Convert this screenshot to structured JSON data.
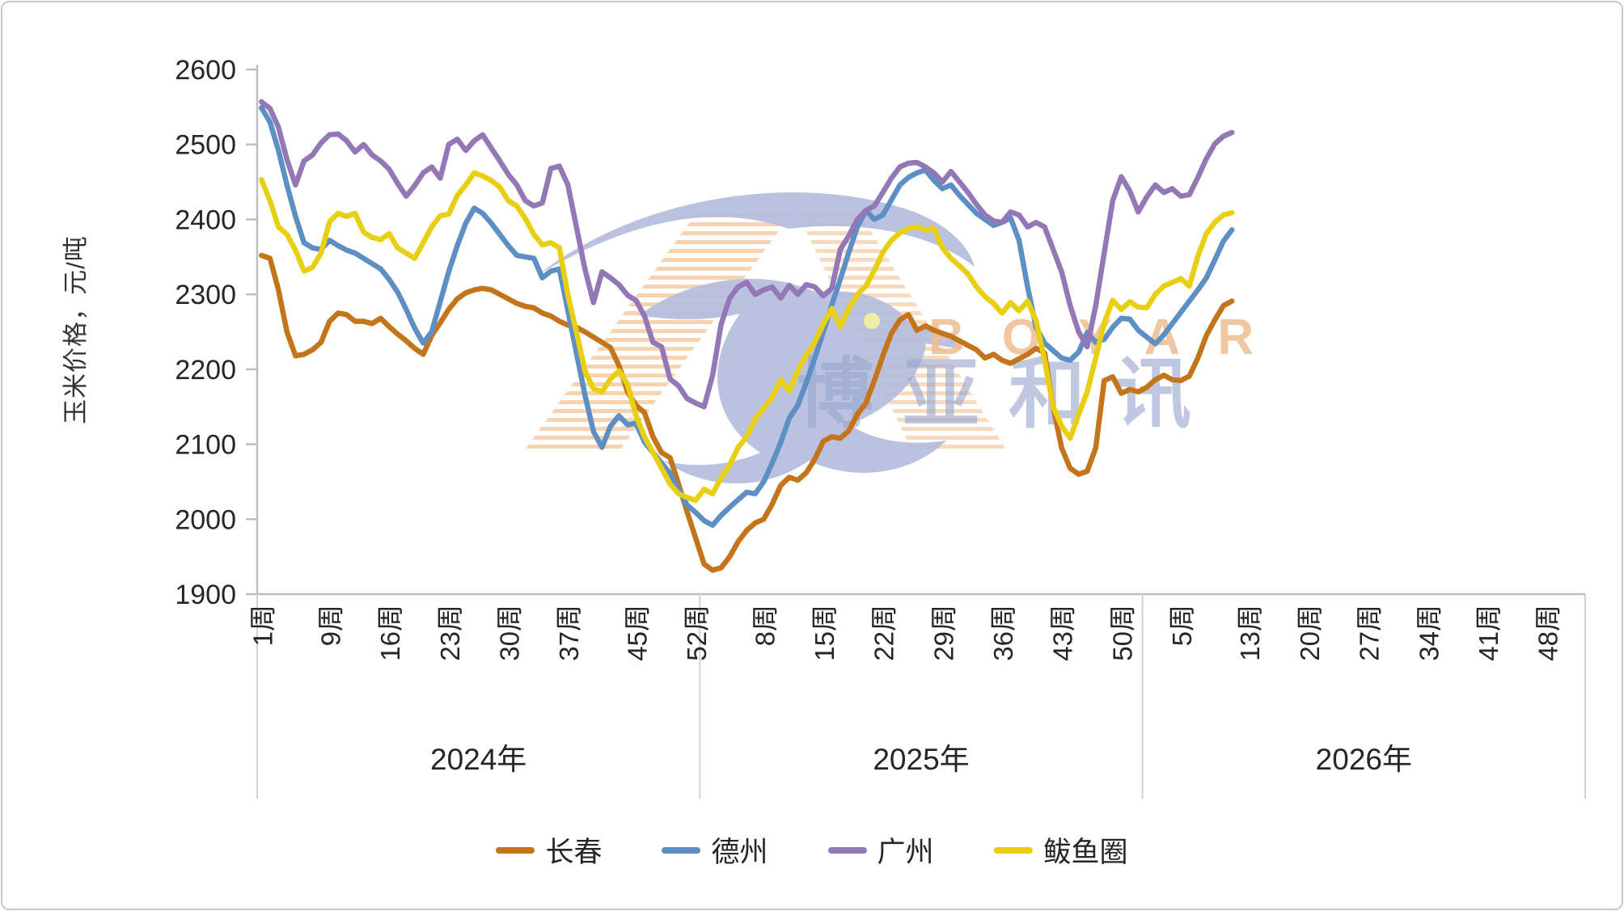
{
  "watermark": {
    "cn_text": "博亚和讯",
    "en_text": "BOYAR"
  },
  "chart_data": {
    "type": "line",
    "title": "",
    "xlabel": "",
    "ylabel": "玉米价格，元/吨",
    "ylim": [
      1900,
      2600
    ],
    "y_ticks": [
      2600,
      2500,
      2400,
      2300,
      2200,
      2100,
      2000,
      1900
    ],
    "grid": false,
    "legend_position": "bottom",
    "x_axis": {
      "unit_suffix": "周",
      "total_slots": 156,
      "years": [
        {
          "label": "2024年",
          "num_weeks": 52,
          "tick_weeks": [
            1,
            9,
            16,
            23,
            30,
            37,
            45,
            52
          ]
        },
        {
          "label": "2025年",
          "num_weeks": 52,
          "tick_weeks": [
            8,
            15,
            22,
            29,
            36,
            43,
            50
          ]
        },
        {
          "label": "2026年",
          "num_weeks": 52,
          "tick_weeks": [
            5,
            13,
            20,
            27,
            34,
            41,
            48
          ]
        }
      ]
    },
    "series": [
      {
        "name": "长春",
        "color": "#C4741A",
        "values_by_year": [
          [
            2352,
            2348,
            2306,
            2250,
            2218,
            2220,
            2226,
            2236,
            2264,
            2275,
            2273,
            2264,
            2264,
            2261,
            2268,
            2257,
            2247,
            2238,
            2228,
            2220,
            2245,
            2262,
            2280,
            2294,
            2302,
            2306,
            2308,
            2306,
            2300,
            2294,
            2288,
            2284,
            2282,
            2275,
            2271,
            2264,
            2259,
            2256,
            2250,
            2243,
            2236,
            2229,
            2205,
            2170,
            2152,
            2142,
            2110,
            2089,
            2082,
            2047,
            2010,
            1975
          ],
          [
            1940,
            1932,
            1935,
            1950,
            1970,
            1985,
            1995,
            2000,
            2020,
            2045,
            2056,
            2052,
            2062,
            2080,
            2104,
            2110,
            2108,
            2118,
            2140,
            2155,
            2185,
            2218,
            2248,
            2266,
            2273,
            2252,
            2258,
            2252,
            2248,
            2244,
            2238,
            2232,
            2226,
            2215,
            2220,
            2212,
            2208,
            2214,
            2220,
            2228,
            2222,
            2150,
            2095,
            2068,
            2060,
            2064,
            2095,
            2185,
            2190,
            2168,
            2173,
            2170
          ],
          [
            2176,
            2186,
            2192,
            2186,
            2185,
            2191,
            2215,
            2245,
            2266,
            2285,
            2291
          ]
        ]
      },
      {
        "name": "德州",
        "color": "#5E8FC4",
        "values_by_year": [
          [
            2549,
            2530,
            2492,
            2446,
            2404,
            2369,
            2362,
            2360,
            2372,
            2365,
            2359,
            2355,
            2348,
            2341,
            2334,
            2320,
            2303,
            2280,
            2255,
            2235,
            2250,
            2290,
            2330,
            2365,
            2395,
            2415,
            2408,
            2395,
            2380,
            2365,
            2352,
            2350,
            2348,
            2322,
            2331,
            2334,
            2278,
            2222,
            2166,
            2117,
            2096,
            2124,
            2138,
            2126,
            2128,
            2103,
            2089,
            2075,
            2061,
            2040,
            2019,
            2009
          ],
          [
            1998,
            1992,
            2005,
            2016,
            2026,
            2036,
            2034,
            2050,
            2075,
            2102,
            2135,
            2152,
            2182,
            2215,
            2250,
            2286,
            2320,
            2356,
            2390,
            2412,
            2400,
            2406,
            2426,
            2446,
            2456,
            2462,
            2466,
            2452,
            2441,
            2446,
            2432,
            2420,
            2408,
            2400,
            2392,
            2396,
            2402,
            2372,
            2310,
            2256,
            2235,
            2225,
            2215,
            2212,
            2223,
            2249,
            2236,
            2240,
            2256,
            2268,
            2267,
            2252
          ],
          [
            2243,
            2234,
            2246,
            2261,
            2276,
            2291,
            2306,
            2322,
            2346,
            2371,
            2386
          ]
        ]
      },
      {
        "name": "广州",
        "color": "#9377B6",
        "values_by_year": [
          [
            2557,
            2548,
            2523,
            2480,
            2446,
            2478,
            2486,
            2502,
            2513,
            2514,
            2505,
            2490,
            2500,
            2486,
            2478,
            2467,
            2448,
            2431,
            2445,
            2462,
            2470,
            2455,
            2500,
            2507,
            2492,
            2505,
            2513,
            2495,
            2478,
            2460,
            2446,
            2425,
            2418,
            2422,
            2468,
            2471,
            2446,
            2390,
            2334,
            2289,
            2330,
            2322,
            2313,
            2299,
            2292,
            2271,
            2236,
            2230,
            2187,
            2178,
            2161,
            2155
          ],
          [
            2150,
            2192,
            2260,
            2295,
            2310,
            2316,
            2300,
            2306,
            2310,
            2295,
            2312,
            2300,
            2313,
            2310,
            2298,
            2308,
            2360,
            2378,
            2400,
            2412,
            2418,
            2436,
            2455,
            2470,
            2475,
            2476,
            2470,
            2462,
            2450,
            2464,
            2450,
            2436,
            2420,
            2406,
            2398,
            2396,
            2410,
            2406,
            2390,
            2396,
            2390,
            2360,
            2330,
            2285,
            2250,
            2230,
            2285,
            2355,
            2425,
            2457,
            2438,
            2410
          ],
          [
            2430,
            2446,
            2436,
            2441,
            2431,
            2433,
            2456,
            2481,
            2501,
            2511,
            2516
          ]
        ]
      },
      {
        "name": "鲅鱼圈",
        "color": "#E8CF12",
        "values_by_year": [
          [
            2453,
            2425,
            2390,
            2380,
            2359,
            2331,
            2336,
            2355,
            2397,
            2408,
            2404,
            2408,
            2383,
            2376,
            2373,
            2381,
            2362,
            2355,
            2348,
            2369,
            2390,
            2405,
            2407,
            2432,
            2446,
            2462,
            2458,
            2452,
            2443,
            2425,
            2418,
            2401,
            2380,
            2366,
            2369,
            2362,
            2299,
            2250,
            2198,
            2174,
            2170,
            2187,
            2198,
            2180,
            2138,
            2110,
            2089,
            2068,
            2047,
            2034,
            2029,
            2025
          ],
          [
            2040,
            2034,
            2055,
            2072,
            2096,
            2110,
            2134,
            2148,
            2163,
            2186,
            2171,
            2198,
            2219,
            2236,
            2260,
            2281,
            2257,
            2281,
            2300,
            2311,
            2332,
            2356,
            2372,
            2382,
            2388,
            2390,
            2386,
            2388,
            2362,
            2348,
            2338,
            2327,
            2310,
            2297,
            2288,
            2275,
            2289,
            2278,
            2291,
            2265,
            2212,
            2150,
            2124,
            2108,
            2140,
            2170,
            2215,
            2262,
            2292,
            2280,
            2290,
            2283
          ],
          [
            2282,
            2300,
            2311,
            2316,
            2321,
            2311,
            2351,
            2381,
            2396,
            2406,
            2409
          ]
        ]
      }
    ]
  }
}
